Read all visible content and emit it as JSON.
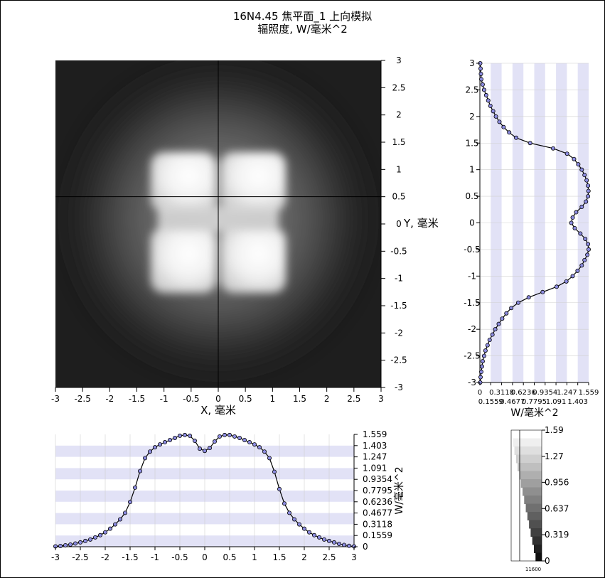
{
  "title": {
    "line1": "16N4.45 焦平面_1 上向模拟",
    "line2": "辐照度, W/毫米^2"
  },
  "chart_data": [
    {
      "type": "heatmap",
      "name": "irradiance-map",
      "xlabel": "X, 毫米",
      "ylabel": "Y, 毫米",
      "xlim": [
        -3,
        3
      ],
      "ylim": [
        -3,
        3
      ],
      "x_ticks": [
        "-3",
        "-2.5",
        "-2",
        "-1.5",
        "-1",
        "-0.5",
        "0",
        "0.5",
        "1",
        "1.5",
        "2",
        "2.5",
        "3"
      ],
      "y_ticks": [
        "3",
        "2.5",
        "2",
        "1.5",
        "1",
        "0.5",
        "0",
        "-0.5",
        "-1",
        "-1.5",
        "-2",
        "-2.5",
        "-3"
      ],
      "crosshair": {
        "x": 0,
        "y": 0.5
      },
      "colormap": "grayscale"
    },
    {
      "type": "line",
      "name": "horizontal-profile",
      "ylabel": "W/毫米^2",
      "xlim": [
        -3,
        3
      ],
      "ylim": [
        0,
        1.559
      ],
      "x_ticks": [
        "-3",
        "-2.5",
        "-2",
        "-1.5",
        "-1",
        "-0.5",
        "0",
        "0.5",
        "1",
        "1.5",
        "2",
        "2.5",
        "3"
      ],
      "y_ticks": [
        "1.559",
        "1.403",
        "1.247",
        "1.091",
        "0.9354",
        "0.7795",
        "0.6236",
        "0.4677",
        "0.3118",
        "0.1559",
        "0"
      ],
      "x": [
        -3.0,
        -2.9,
        -2.8,
        -2.7,
        -2.6,
        -2.5,
        -2.4,
        -2.3,
        -2.2,
        -2.1,
        -2.0,
        -1.9,
        -1.8,
        -1.7,
        -1.6,
        -1.5,
        -1.4,
        -1.3,
        -1.2,
        -1.1,
        -1.0,
        -0.9,
        -0.8,
        -0.7,
        -0.6,
        -0.5,
        -0.4,
        -0.3,
        -0.2,
        -0.1,
        0.0,
        0.1,
        0.2,
        0.3,
        0.4,
        0.5,
        0.6,
        0.7,
        0.8,
        0.9,
        1.0,
        1.1,
        1.2,
        1.3,
        1.4,
        1.5,
        1.6,
        1.7,
        1.8,
        1.9,
        2.0,
        2.1,
        2.2,
        2.3,
        2.4,
        2.5,
        2.6,
        2.7,
        2.8,
        2.9,
        3.0
      ],
      "values": [
        0.005,
        0.01,
        0.02,
        0.03,
        0.045,
        0.06,
        0.08,
        0.1,
        0.13,
        0.16,
        0.2,
        0.25,
        0.31,
        0.38,
        0.47,
        0.62,
        0.82,
        1.05,
        1.23,
        1.32,
        1.38,
        1.42,
        1.45,
        1.48,
        1.51,
        1.54,
        1.55,
        1.54,
        1.47,
        1.36,
        1.33,
        1.37,
        1.46,
        1.53,
        1.55,
        1.55,
        1.53,
        1.51,
        1.48,
        1.45,
        1.42,
        1.38,
        1.32,
        1.23,
        1.04,
        0.8,
        0.6,
        0.47,
        0.38,
        0.31,
        0.25,
        0.2,
        0.16,
        0.13,
        0.1,
        0.08,
        0.06,
        0.04,
        0.025,
        0.012,
        0.005
      ]
    },
    {
      "type": "line",
      "name": "vertical-profile",
      "xlabel": "W/毫米^2",
      "xlim": [
        0,
        1.559
      ],
      "ylim": [
        -3,
        3
      ],
      "x_ticks_row1": [
        "0",
        "0.3118",
        "0.6236",
        "0.9354",
        "1.247",
        "1.559"
      ],
      "x_ticks_row2": [
        "0.1559",
        "0.4677",
        "0.7795",
        "1.091",
        "1.403"
      ],
      "y_ticks": [
        "3",
        "2.5",
        "2",
        "1.5",
        "1",
        "0.5",
        "0",
        "-0.5",
        "-1",
        "-1.5",
        "-2",
        "-2.5",
        "-3"
      ],
      "y": [
        3.0,
        2.9,
        2.8,
        2.7,
        2.6,
        2.5,
        2.4,
        2.3,
        2.2,
        2.1,
        2.0,
        1.9,
        1.8,
        1.7,
        1.6,
        1.5,
        1.4,
        1.3,
        1.2,
        1.1,
        1.0,
        0.9,
        0.8,
        0.7,
        0.6,
        0.5,
        0.4,
        0.3,
        0.2,
        0.1,
        0.0,
        -0.1,
        -0.2,
        -0.3,
        -0.4,
        -0.5,
        -0.6,
        -0.7,
        -0.8,
        -0.9,
        -1.0,
        -1.1,
        -1.2,
        -1.3,
        -1.4,
        -1.5,
        -1.6,
        -1.7,
        -1.8,
        -1.9,
        -2.0,
        -2.1,
        -2.2,
        -2.3,
        -2.4,
        -2.5,
        -2.6,
        -2.7,
        -2.8,
        -2.9,
        -3.0
      ],
      "values": [
        0.005,
        0.01,
        0.015,
        0.02,
        0.04,
        0.06,
        0.09,
        0.12,
        0.15,
        0.19,
        0.23,
        0.28,
        0.34,
        0.42,
        0.52,
        0.72,
        1.05,
        1.25,
        1.35,
        1.41,
        1.46,
        1.5,
        1.53,
        1.55,
        1.556,
        1.55,
        1.52,
        1.46,
        1.38,
        1.33,
        1.31,
        1.36,
        1.44,
        1.51,
        1.55,
        1.559,
        1.54,
        1.5,
        1.46,
        1.4,
        1.33,
        1.24,
        1.1,
        0.9,
        0.7,
        0.55,
        0.45,
        0.38,
        0.32,
        0.27,
        0.22,
        0.18,
        0.14,
        0.11,
        0.08,
        0.06,
        0.04,
        0.03,
        0.02,
        0.01,
        0.005
      ]
    },
    {
      "type": "heatmap",
      "name": "colorbar",
      "labels": [
        "1.59",
        "1.27",
        "0.956",
        "0.637",
        "0.319",
        "0"
      ],
      "range": [
        0,
        1.59
      ],
      "bottom_label": "11600"
    }
  ],
  "colors": {
    "band": "#e2e2f6",
    "marker_fill": "#8c8ce0",
    "marker_stroke": "#000000",
    "line": "#000000",
    "grid": "#d0d0d0"
  }
}
